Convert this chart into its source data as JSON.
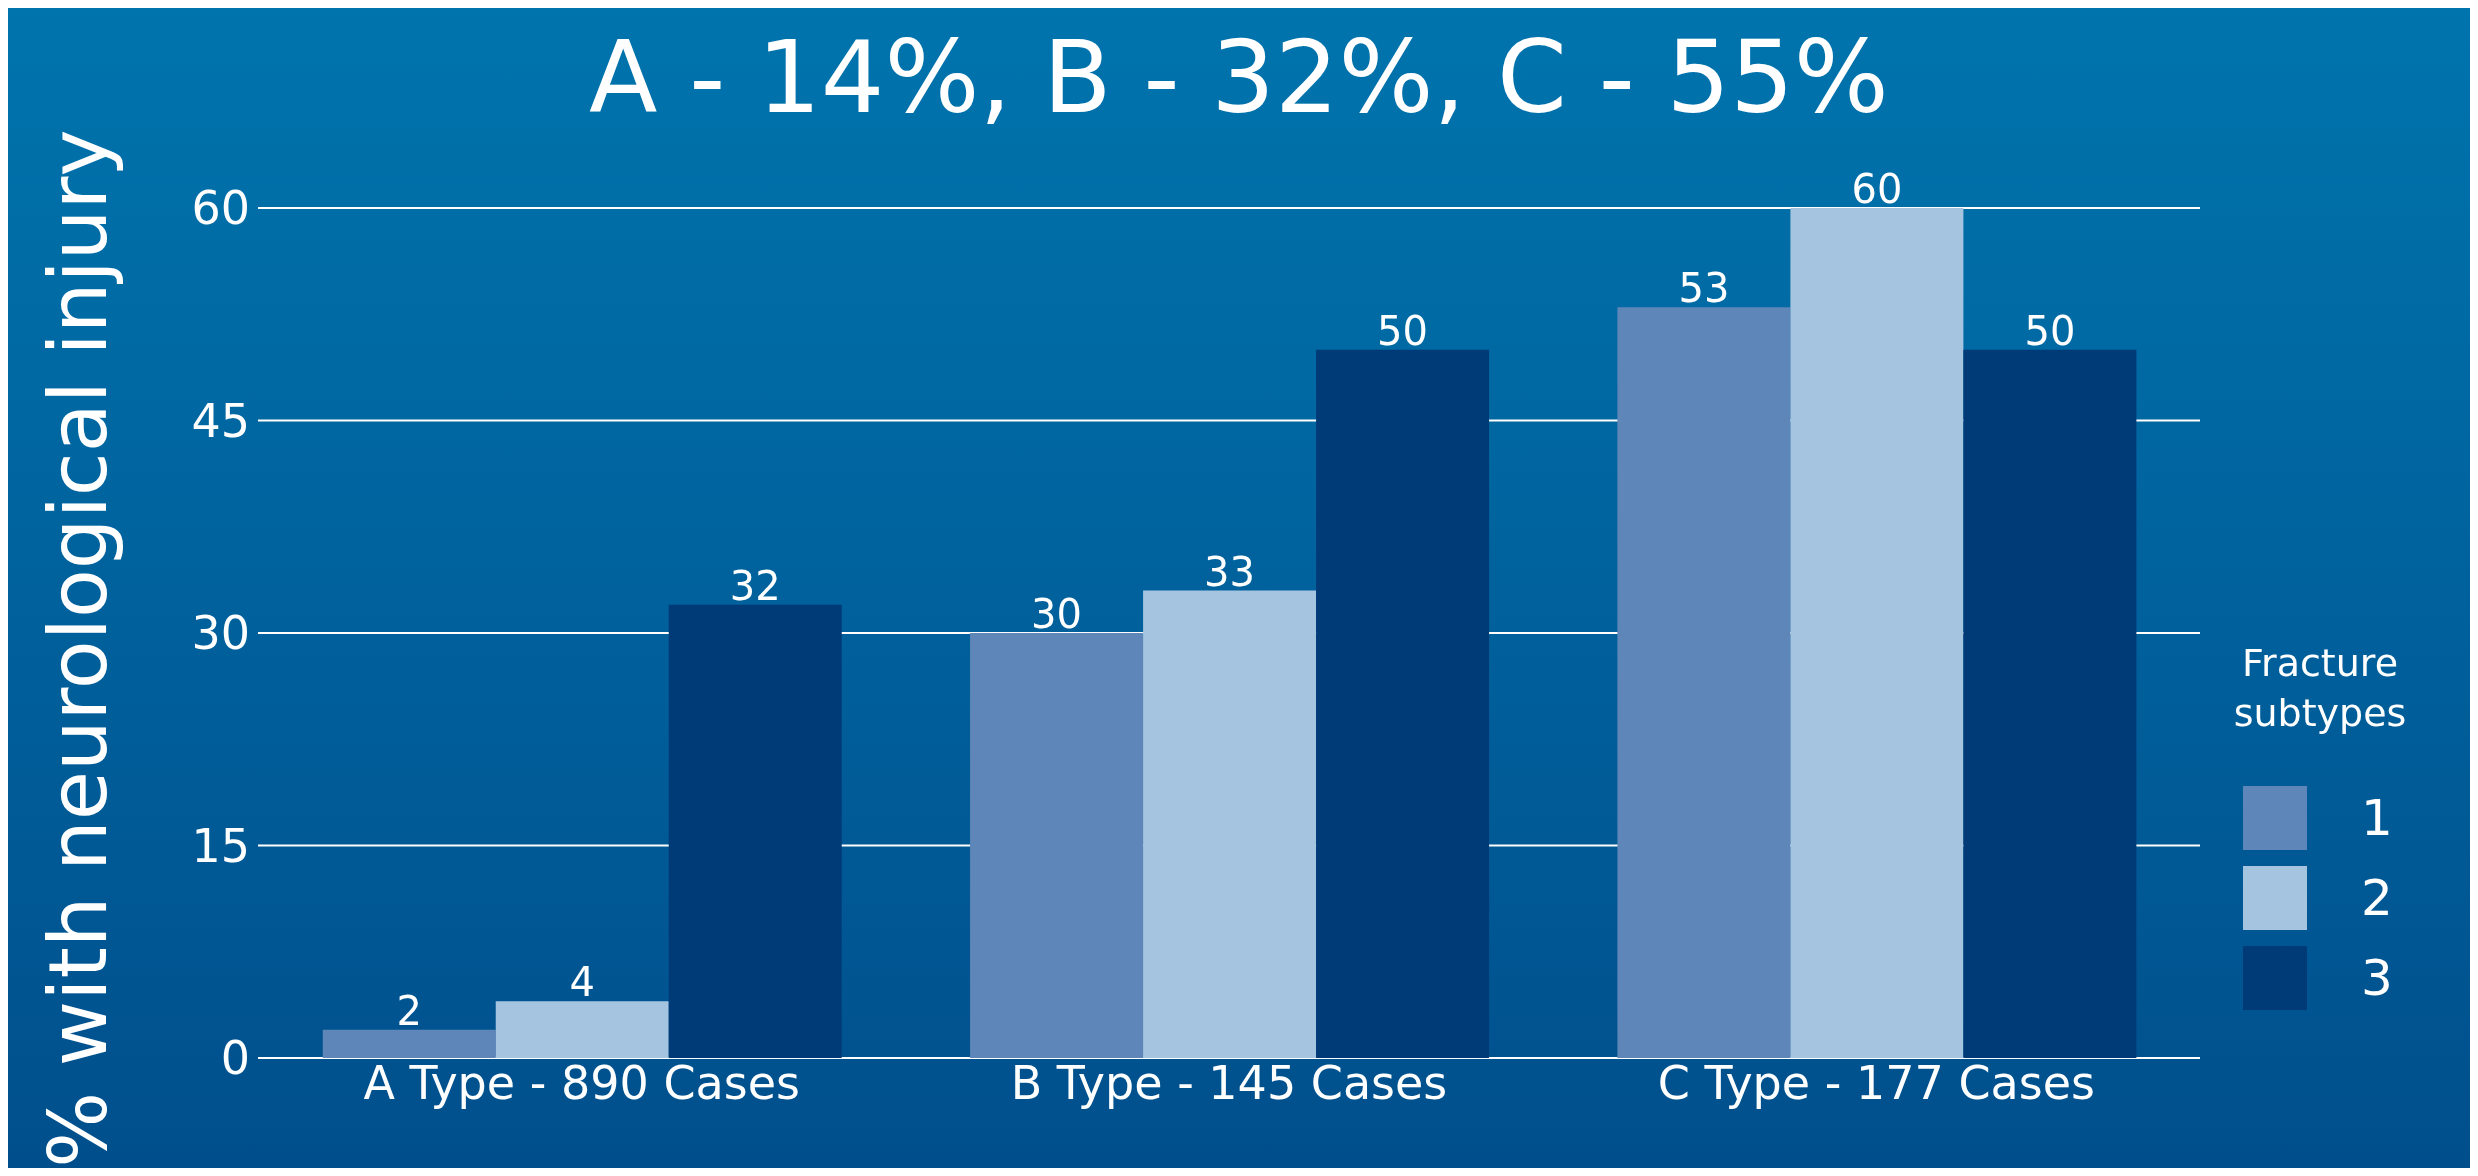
{
  "chart_data": {
    "type": "bar",
    "title": "A - 14%, B - 32%, C - 55%",
    "ylabel": "% with neurological injury",
    "legend_title": "Fracture subtypes",
    "categories": [
      "A Type - 890 Cases",
      "B Type - 145 Cases",
      "C Type - 177 Cases"
    ],
    "series": [
      {
        "name": "1",
        "color": "#5f86b8",
        "values": [
          2,
          30,
          53
        ]
      },
      {
        "name": "2",
        "color": "#a5c4e0",
        "values": [
          4,
          33,
          60
        ]
      },
      {
        "name": "3",
        "color": "#003b78",
        "values": [
          32,
          50,
          50
        ]
      }
    ],
    "ylim": [
      0,
      60
    ],
    "yticks": [
      0,
      15,
      30,
      45,
      60
    ],
    "grid": "y",
    "legend": "right",
    "data_labels": true
  }
}
